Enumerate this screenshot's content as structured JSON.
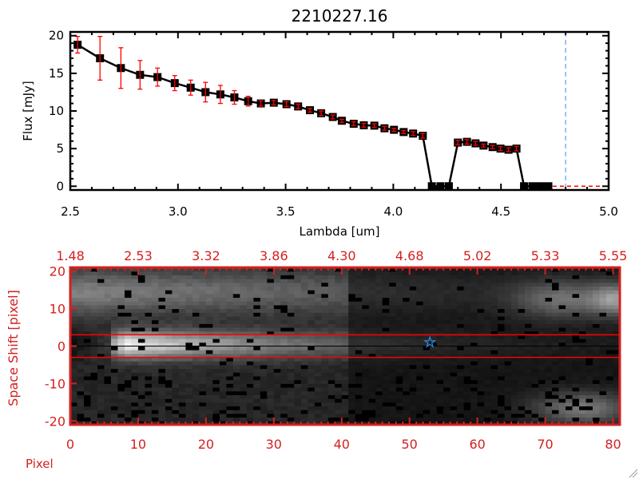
{
  "chart_data": [
    {
      "type": "line",
      "title": "2210227.16",
      "xlabel": "Lambda [um]",
      "ylabel": "Flux [mJy]",
      "xlim": [
        2.5,
        5.0
      ],
      "ylim": [
        -0.5,
        20.5
      ],
      "xticks": [
        "2.5",
        "3.0",
        "3.5",
        "4.0",
        "4.5",
        "5.0"
      ],
      "yticks": [
        "0",
        "5",
        "10",
        "15",
        "20"
      ],
      "grid": false,
      "marker": "square",
      "colors": {
        "line": "#000000",
        "errorbar": "#ff0000",
        "zero_line": "#ff0000",
        "vline": "#3a8ee6"
      },
      "vline_x": 4.8,
      "series": [
        {
          "x": [
            2.534,
            2.638,
            2.735,
            2.824,
            2.905,
            2.985,
            3.059,
            3.128,
            3.197,
            3.262,
            3.326,
            3.385,
            3.445,
            3.504,
            3.558,
            3.613,
            3.665,
            3.719,
            3.761,
            3.816,
            3.863,
            3.912,
            3.959,
            4.003,
            4.048,
            4.092,
            4.137,
            4.179,
            4.219,
            4.258,
            4.3,
            4.342,
            4.382,
            4.419,
            4.461,
            4.498,
            4.535,
            4.572,
            4.607,
            4.646,
            4.683,
            4.72
          ],
          "y": [
            18.8,
            17.0,
            15.7,
            14.8,
            14.5,
            13.7,
            13.1,
            12.5,
            12.2,
            11.8,
            11.3,
            11.0,
            11.1,
            10.9,
            10.6,
            10.1,
            9.7,
            9.2,
            8.7,
            8.3,
            8.1,
            8.05,
            7.7,
            7.5,
            7.2,
            7.0,
            6.7,
            0,
            0,
            0,
            5.8,
            5.9,
            5.7,
            5.4,
            5.2,
            5.0,
            4.85,
            5.0,
            0,
            0,
            0,
            0
          ],
          "yerr": [
            1.1,
            2.9,
            2.7,
            1.9,
            1.2,
            1.0,
            1.0,
            1.3,
            1.2,
            0.9,
            0.65,
            0.35,
            0.3,
            0.3,
            0.3,
            0.25,
            0.3,
            0.25,
            0.2,
            0.25,
            0.25,
            0.25,
            0.25,
            0.2,
            0.2,
            0.25,
            0.3,
            0,
            0,
            0,
            0.3,
            0.3,
            0.25,
            0.2,
            0.2,
            0.25,
            0.25,
            0.3,
            0,
            0,
            0,
            0
          ]
        }
      ]
    },
    {
      "type": "heatmap",
      "xlabel": "Pixel",
      "ylabel": "Space Shift [pixel]",
      "xlim": [
        0,
        81
      ],
      "ylim": [
        -21,
        21
      ],
      "xticks": [
        "0",
        "10",
        "20",
        "30",
        "40",
        "50",
        "60",
        "70",
        "80"
      ],
      "yticks": [
        "-20",
        "-10",
        "0",
        "10",
        "20"
      ],
      "top_ticks": [
        "1.48",
        "2.53",
        "3.32",
        "3.86",
        "4.30",
        "4.68",
        "5.02",
        "5.33",
        "5.55"
      ],
      "colormap": "grayscale",
      "aperture_lines": [
        3,
        -3
      ],
      "center_line": 0,
      "star_marker": {
        "x": 53,
        "y": 1
      },
      "colors": {
        "axis": "#d42020",
        "aperture": "#ff0000",
        "center": "#000000",
        "star": "#2a8ef0"
      }
    }
  ]
}
